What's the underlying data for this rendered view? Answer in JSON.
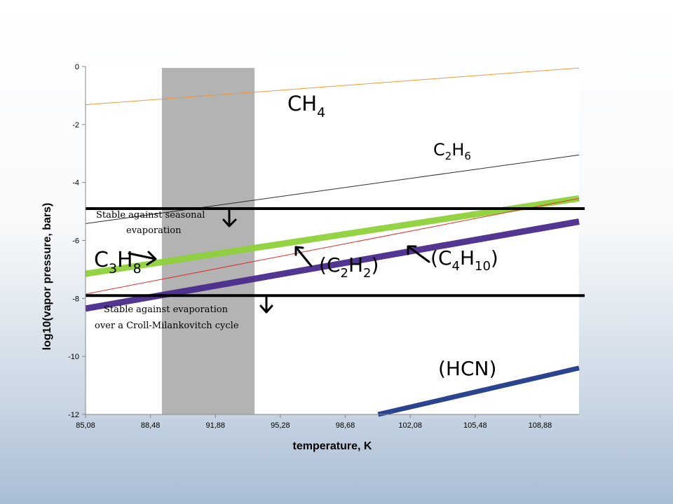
{
  "chart_data": {
    "type": "line",
    "xlabel": "temperature, K",
    "ylabel": "log10(vapor pressure, bars)",
    "xlim": [
      85.08,
      110.92
    ],
    "ylim": [
      -12,
      0
    ],
    "x_ticks": [
      "85,08",
      "88,48",
      "91,88",
      "95,28",
      "98,68",
      "102,08",
      "105,48",
      "108,88"
    ],
    "x_tick_values": [
      85.08,
      88.48,
      91.88,
      95.28,
      98.68,
      102.08,
      105.48,
      108.88
    ],
    "y_ticks": [
      "0",
      "-2",
      "-4",
      "-6",
      "-8",
      "-10",
      "-12"
    ],
    "y_tick_values": [
      0,
      -2,
      -4,
      -6,
      -8,
      -10,
      -12
    ],
    "grid": false,
    "shaded_band": {
      "x": [
        89.08,
        93.93
      ]
    },
    "series": [
      {
        "name": "CH4",
        "x": [
          85.08,
          110.92
        ],
        "y": [
          -1.32,
          -0.05
        ],
        "color": "#f0922e"
      },
      {
        "name": "C2H6",
        "x": [
          85.08,
          110.92
        ],
        "y": [
          -5.42,
          -3.05
        ],
        "color": "#222222"
      },
      {
        "name": "C3H8",
        "x": [
          85.08,
          110.92
        ],
        "y": [
          -7.15,
          -4.55
        ],
        "color": "#8ed13a"
      },
      {
        "name": "C2H2",
        "x": [
          85.08,
          110.92
        ],
        "y": [
          -7.85,
          -4.55
        ],
        "color": "#e0201c"
      },
      {
        "name": "C4H10",
        "x": [
          85.08,
          110.92
        ],
        "y": [
          -8.35,
          -5.35
        ],
        "color": "#4a2a8c"
      },
      {
        "name": "HCN",
        "x": [
          100.4,
          110.92
        ],
        "y": [
          -12.0,
          -10.4
        ],
        "color": "#1f3a8a"
      }
    ],
    "thresholds": [
      {
        "y": -4.9,
        "label_lines": [
          "Stable against seasonal",
          "evaporation"
        ]
      },
      {
        "y": -7.9,
        "label_lines": [
          "Stable against evaporation",
          "over a Croll-Milankovitch cycle"
        ]
      }
    ],
    "species_labels": {
      "ch4": {
        "base": "CH",
        "sub": "4"
      },
      "c2h6": {
        "p1": "C",
        "s1": "2",
        "p2": "H",
        "s2": "6"
      },
      "c3h8": {
        "p1": "C",
        "s1": "3",
        "p2": "H",
        "s2": "8"
      },
      "c2h2": {
        "open": "(",
        "p1": "C",
        "s1": "2",
        "p2": "H",
        "s2": "2",
        "close": ")"
      },
      "c4h10": {
        "open": "(",
        "p1": "C",
        "s1": "4",
        "p2": "H",
        "s2": "10",
        "close": ")"
      },
      "hcn": "(HCN)"
    }
  }
}
